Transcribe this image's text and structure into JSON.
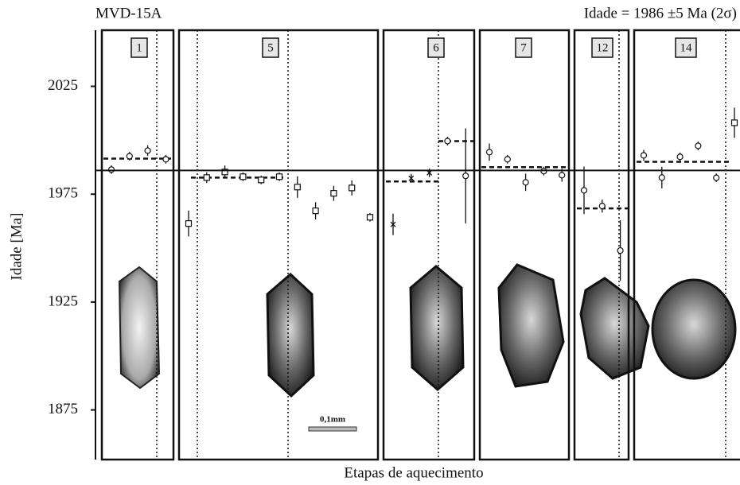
{
  "chart_data": {
    "type": "errorbar",
    "title": "MVD-15A",
    "annotation": "Idade = 1986 ±5 Ma (2σ)",
    "reference": 1986,
    "y_label": "Idade [Ma]",
    "x_label": "Etapas de aquecimento",
    "scale_bar": "0,1mm",
    "ylim": [
      1852,
      2051
    ],
    "yticks": [
      1875,
      1925,
      1975,
      2025
    ],
    "panels": [
      {
        "label": "1",
        "marker": "o",
        "values": [
          1986.4,
          1992.6,
          1995.2,
          1991.2
        ],
        "errors": [
          2,
          2,
          2.5,
          2
        ],
        "means": [
          1991.5
        ]
      },
      {
        "label": "5",
        "marker": "s",
        "values": [
          1961.4,
          1982.7,
          1985.3,
          1983.1,
          1981.6,
          1983.1,
          1978.3,
          1967.3,
          1975.4,
          1977.9,
          1964.3
        ],
        "errors": [
          6,
          2.5,
          3,
          2,
          2,
          2,
          5,
          4,
          3.5,
          3.5,
          2
        ],
        "means": [
          1982.7
        ]
      },
      {
        "label": "6",
        "marker": [
          "x",
          "x",
          "x",
          "o",
          "o"
        ],
        "values": [
          1961,
          1982.4,
          1984.9,
          1999.6,
          1983.5
        ],
        "errors": [
          5,
          2,
          2,
          2,
          22
        ],
        "means": [
          1980.9,
          1999.6
        ]
      },
      {
        "label": "7",
        "marker": "o",
        "values": [
          1994.5,
          1991.2,
          1980.5,
          1985.7,
          1983.8
        ],
        "errors": [
          4,
          2,
          4,
          2,
          3
        ],
        "means": [
          1987.5
        ]
      },
      {
        "label": "12",
        "marker": "o",
        "values": [
          1976.8,
          1969.5,
          1948.9
        ],
        "errors": [
          11,
          3,
          14
        ],
        "means": [
          1968.4
        ]
      },
      {
        "label": "14",
        "marker": [
          "o",
          "o",
          "o",
          "o",
          "o",
          "s"
        ],
        "values": [
          1993,
          1982.7,
          1992.3,
          1997.4,
          1982.6,
          2008.1
        ],
        "errors": [
          2.5,
          5,
          2,
          2,
          2,
          7
        ],
        "means": [
          1990
        ]
      }
    ]
  }
}
